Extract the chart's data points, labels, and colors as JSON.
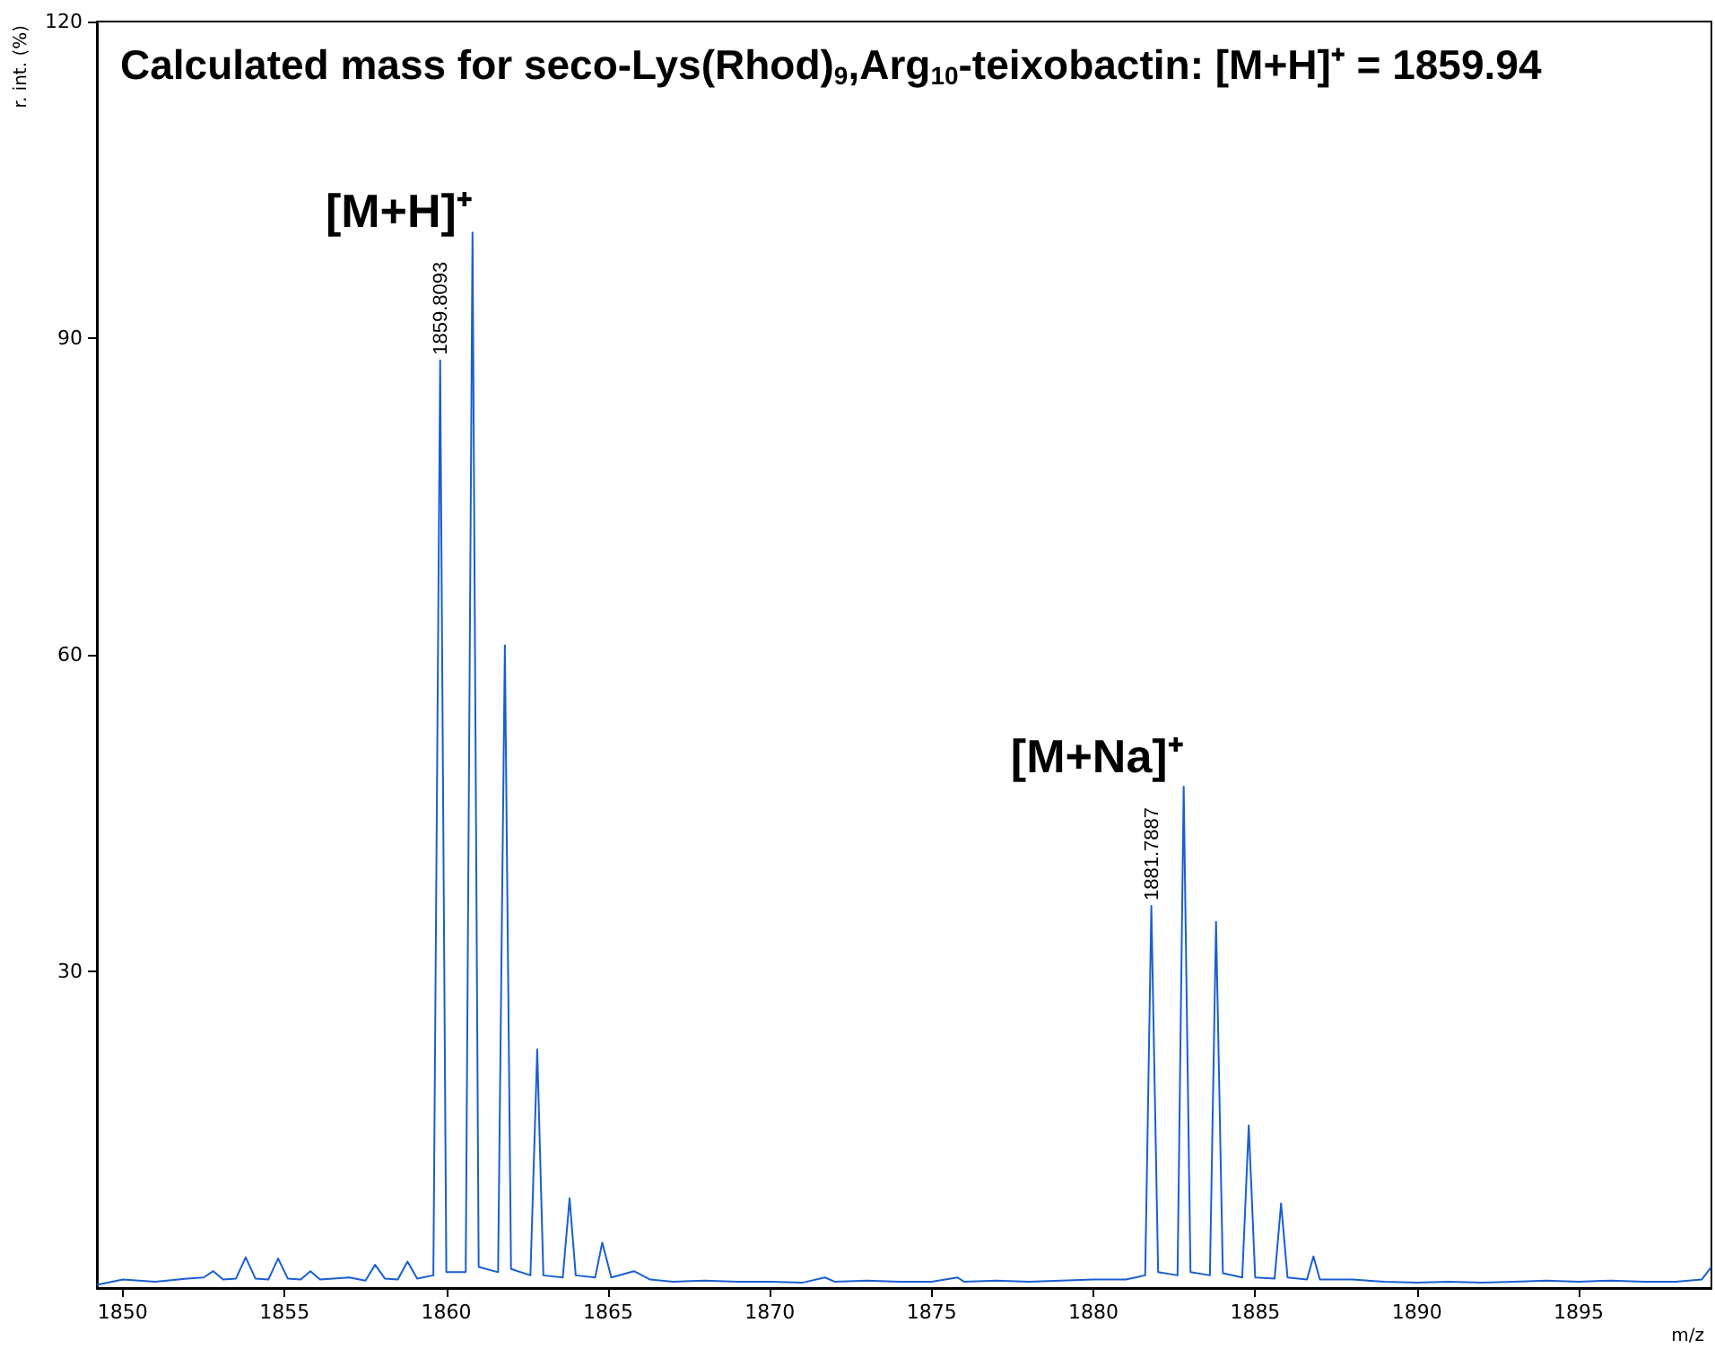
{
  "chart_data": {
    "type": "line",
    "title": "Calculated mass for seco-Lys(Rhod)$_{9}$,Arg$_{10}$-teixobactin: [M+H]⁺ = 1859.94",
    "xlabel": "m/z",
    "ylabel": "r. int. (%)",
    "x": [
      1849.2,
      1850,
      1851,
      1852,
      1852.5,
      1852.8,
      1853.1,
      1853.5,
      1853.8,
      1854.1,
      1854.5,
      1854.8,
      1855.1,
      1855.5,
      1855.8,
      1856.1,
      1857,
      1857.5,
      1857.8,
      1858.1,
      1858.5,
      1858.8,
      1859.1,
      1859.6,
      1859.81,
      1860.0,
      1860.6,
      1860.81,
      1861.0,
      1861.6,
      1861.81,
      1862.0,
      1862.6,
      1862.81,
      1863.0,
      1863.6,
      1863.81,
      1864.0,
      1864.6,
      1864.82,
      1865.1,
      1865.8,
      1866.3,
      1867,
      1868,
      1869,
      1870,
      1871,
      1871.7,
      1872,
      1873,
      1874,
      1875,
      1875.8,
      1876,
      1877,
      1878,
      1879,
      1880,
      1881,
      1881.6,
      1881.79,
      1882.0,
      1882.6,
      1882.79,
      1883.0,
      1883.6,
      1883.79,
      1884.0,
      1884.6,
      1884.8,
      1885.0,
      1885.6,
      1885.8,
      1886.0,
      1886.6,
      1886.8,
      1887.0,
      1888,
      1889,
      1890,
      1891,
      1892,
      1893,
      1894,
      1895,
      1896,
      1897,
      1898,
      1898.8,
      1899.1
    ],
    "series": [
      {
        "color": "#1a5fd0",
        "values": [
          0.3,
          0.8,
          0.6,
          0.9,
          1.0,
          1.6,
          0.8,
          0.9,
          2.9,
          0.9,
          0.8,
          2.8,
          0.9,
          0.8,
          1.6,
          0.8,
          1.0,
          0.7,
          2.2,
          0.9,
          0.8,
          2.5,
          0.9,
          1.2,
          87.9,
          1.5,
          1.5,
          100,
          2.0,
          1.5,
          60.9,
          1.8,
          1.2,
          22.6,
          1.2,
          1.0,
          8.5,
          1.2,
          1.0,
          4.3,
          1.0,
          1.6,
          0.8,
          0.6,
          0.7,
          0.6,
          0.6,
          0.5,
          1.0,
          0.6,
          0.7,
          0.6,
          0.6,
          1.0,
          0.6,
          0.7,
          0.6,
          0.7,
          0.8,
          0.8,
          1.2,
          36.2,
          1.5,
          1.2,
          47.5,
          1.5,
          1.2,
          34.7,
          1.4,
          1.0,
          15.4,
          1.0,
          0.9,
          8.0,
          1.0,
          0.8,
          3.0,
          0.8,
          0.8,
          0.6,
          0.5,
          0.6,
          0.5,
          0.6,
          0.7,
          0.6,
          0.7,
          0.6,
          0.6,
          0.8,
          2.0
        ]
      }
    ],
    "xlim": [
      1849.2,
      1899.1
    ],
    "xticks": [
      1850,
      1855,
      1860,
      1865,
      1870,
      1875,
      1880,
      1885,
      1890,
      1895
    ],
    "ylim": [
      0,
      120
    ],
    "yticks": [
      30,
      60,
      90,
      120
    ],
    "annotations": [
      "[M+H]⁺",
      {
        "text": "1859.8093",
        "x": 1859.81,
        "y": 87.9
      },
      "[M+Na]⁺",
      {
        "text": "1881.7887",
        "x": 1881.79,
        "y": 36.2
      }
    ],
    "grid": false,
    "marker": "none",
    "line_style": "solid"
  }
}
